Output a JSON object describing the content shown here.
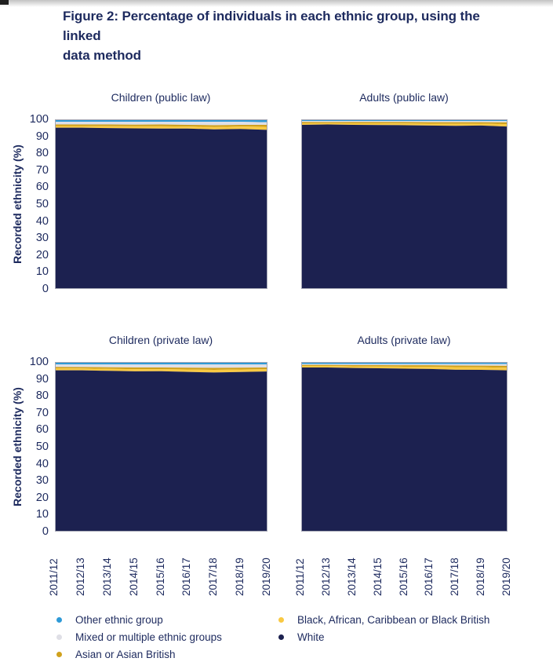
{
  "figure": {
    "title_line1": "Figure 2: Percentage of individuals in each ethnic group, using the linked",
    "title_line2": "data method"
  },
  "axis": {
    "ylabel": "Recorded ethnicity (%)",
    "yticks": [
      "100",
      "90",
      "80",
      "70",
      "60",
      "50",
      "40",
      "30",
      "20",
      "10",
      "0"
    ],
    "xticks": [
      "2011/12",
      "2012/13",
      "2013/14",
      "2014/15",
      "2015/16",
      "2016/17",
      "2017/18",
      "2018/19",
      "2019/20"
    ]
  },
  "colors": {
    "text_navy": "#1d2a5e",
    "other": "#2e9ad7",
    "mixed": "#dfdfe6",
    "asian": "#d0a11d",
    "black": "#f9c943",
    "white": "#1c2150"
  },
  "legend": {
    "columns": [
      {
        "items": [
          {
            "key": "other",
            "label": "Other ethnic group",
            "color": "#2e9ad7"
          },
          {
            "key": "mixed",
            "label": "Mixed or multiple ethnic groups",
            "color": "#dfdfe6"
          },
          {
            "key": "asian",
            "label": "Asian or Asian British",
            "color": "#d0a11d"
          }
        ]
      },
      {
        "items": [
          {
            "key": "black",
            "label": "Black, African, Caribbean or Black British",
            "color": "#f9c943"
          },
          {
            "key": "white",
            "label": "White",
            "color": "#1c2150"
          }
        ]
      }
    ]
  },
  "chart_data": [
    {
      "type": "area",
      "stacked": true,
      "title": "Children (public law)",
      "xlabel": "",
      "ylabel": "Recorded ethnicity (%)",
      "ylim": [
        0,
        100
      ],
      "categories": [
        "2011/12",
        "2012/13",
        "2013/14",
        "2014/15",
        "2015/16",
        "2016/17",
        "2017/18",
        "2018/19",
        "2019/20"
      ],
      "series_order": "top_to_bottom",
      "series": [
        {
          "key": "other",
          "name": "Other ethnic group",
          "color": "#2e9ad7",
          "values": [
            1.0,
            1.0,
            1.0,
            1.0,
            1.0,
            1.0,
            1.0,
            1.0,
            1.2
          ]
        },
        {
          "key": "mixed",
          "name": "Mixed or multiple ethnic groups",
          "color": "#dfdfe6",
          "values": [
            1.6,
            1.6,
            1.6,
            1.7,
            1.6,
            1.8,
            2.0,
            1.8,
            1.6
          ]
        },
        {
          "key": "asian",
          "name": "Asian or Asian British",
          "color": "#d0a11d",
          "values": [
            0.9,
            0.9,
            1.0,
            1.0,
            1.1,
            1.0,
            1.1,
            1.0,
            1.2
          ]
        },
        {
          "key": "black",
          "name": "Black, African, Caribbean or Black British",
          "color": "#f9c943",
          "values": [
            1.0,
            1.0,
            1.1,
            1.2,
            1.3,
            1.2,
            1.4,
            1.5,
            1.8
          ]
        },
        {
          "key": "white",
          "name": "White",
          "color": "#1c2150",
          "values": [
            95.5,
            95.5,
            95.3,
            95.1,
            95.0,
            95.0,
            94.5,
            94.7,
            94.2
          ]
        }
      ]
    },
    {
      "type": "area",
      "stacked": true,
      "title": "Adults (public law)",
      "xlabel": "",
      "ylabel": "Recorded ethnicity (%)",
      "ylim": [
        0,
        100
      ],
      "categories": [
        "2011/12",
        "2012/13",
        "2013/14",
        "2014/15",
        "2015/16",
        "2016/17",
        "2017/18",
        "2018/19",
        "2019/20"
      ],
      "series_order": "top_to_bottom",
      "series": [
        {
          "key": "other",
          "name": "Other ethnic group",
          "color": "#2e9ad7",
          "values": [
            0.5,
            0.5,
            0.5,
            0.5,
            0.5,
            0.5,
            0.5,
            0.5,
            0.5
          ]
        },
        {
          "key": "mixed",
          "name": "Mixed or multiple ethnic groups",
          "color": "#dfdfe6",
          "values": [
            0.6,
            0.6,
            0.6,
            0.6,
            0.6,
            0.7,
            0.7,
            0.7,
            0.8
          ]
        },
        {
          "key": "asian",
          "name": "Asian or Asian British",
          "color": "#d0a11d",
          "values": [
            0.8,
            0.7,
            0.8,
            0.8,
            0.9,
            0.9,
            1.0,
            0.9,
            1.1
          ]
        },
        {
          "key": "black",
          "name": "Black, African, Caribbean or Black British",
          "color": "#f9c943",
          "values": [
            0.9,
            0.8,
            0.9,
            1.0,
            1.0,
            1.1,
            1.2,
            1.1,
            1.4
          ]
        },
        {
          "key": "white",
          "name": "White",
          "color": "#1c2150",
          "values": [
            97.2,
            97.4,
            97.2,
            97.1,
            97.0,
            96.8,
            96.6,
            96.8,
            96.2
          ]
        }
      ]
    },
    {
      "type": "area",
      "stacked": true,
      "title": "Children (private law)",
      "xlabel": "",
      "ylabel": "Recorded ethnicity (%)",
      "ylim": [
        0,
        100
      ],
      "categories": [
        "2011/12",
        "2012/13",
        "2013/14",
        "2014/15",
        "2015/16",
        "2016/17",
        "2017/18",
        "2018/19",
        "2019/20"
      ],
      "series_order": "top_to_bottom",
      "series": [
        {
          "key": "other",
          "name": "Other ethnic group",
          "color": "#2e9ad7",
          "values": [
            1.0,
            1.0,
            1.0,
            1.0,
            1.0,
            1.0,
            1.0,
            1.0,
            1.0
          ]
        },
        {
          "key": "mixed",
          "name": "Mixed or multiple ethnic groups",
          "color": "#dfdfe6",
          "values": [
            1.5,
            1.6,
            1.7,
            1.8,
            1.8,
            1.9,
            2.0,
            1.9,
            1.8
          ]
        },
        {
          "key": "asian",
          "name": "Asian or Asian British",
          "color": "#d0a11d",
          "values": [
            0.8,
            0.8,
            0.9,
            1.0,
            1.0,
            1.1,
            1.2,
            1.1,
            1.0
          ]
        },
        {
          "key": "black",
          "name": "Black, African, Caribbean or Black British",
          "color": "#f9c943",
          "values": [
            1.2,
            1.1,
            1.2,
            1.3,
            1.2,
            1.4,
            1.6,
            1.5,
            1.4
          ]
        },
        {
          "key": "white",
          "name": "White",
          "color": "#1c2150",
          "values": [
            95.5,
            95.5,
            95.2,
            94.9,
            95.0,
            94.6,
            94.2,
            94.5,
            94.8
          ]
        }
      ]
    },
    {
      "type": "area",
      "stacked": true,
      "title": "Adults (private law)",
      "xlabel": "",
      "ylabel": "Recorded ethnicity (%)",
      "ylim": [
        0,
        100
      ],
      "categories": [
        "2011/12",
        "2012/13",
        "2013/14",
        "2014/15",
        "2015/16",
        "2016/17",
        "2017/18",
        "2018/19",
        "2019/20"
      ],
      "series_order": "top_to_bottom",
      "series": [
        {
          "key": "other",
          "name": "Other ethnic group",
          "color": "#2e9ad7",
          "values": [
            0.8,
            0.8,
            0.8,
            0.8,
            0.8,
            0.8,
            0.8,
            0.8,
            0.8
          ]
        },
        {
          "key": "mixed",
          "name": "Mixed or multiple ethnic groups",
          "color": "#dfdfe6",
          "values": [
            0.5,
            0.5,
            0.6,
            0.6,
            0.7,
            0.7,
            0.8,
            0.9,
            1.0
          ]
        },
        {
          "key": "asian",
          "name": "Asian or Asian British",
          "color": "#d0a11d",
          "values": [
            0.6,
            0.6,
            0.7,
            0.8,
            0.8,
            0.9,
            1.0,
            1.0,
            1.1
          ]
        },
        {
          "key": "black",
          "name": "Black, African, Caribbean or Black British",
          "color": "#f9c943",
          "values": [
            0.9,
            0.9,
            1.0,
            1.1,
            1.2,
            1.3,
            1.5,
            1.5,
            1.6
          ]
        },
        {
          "key": "white",
          "name": "White",
          "color": "#1c2150",
          "values": [
            97.2,
            97.2,
            96.9,
            96.7,
            96.5,
            96.3,
            95.9,
            95.8,
            95.5
          ]
        }
      ]
    }
  ]
}
